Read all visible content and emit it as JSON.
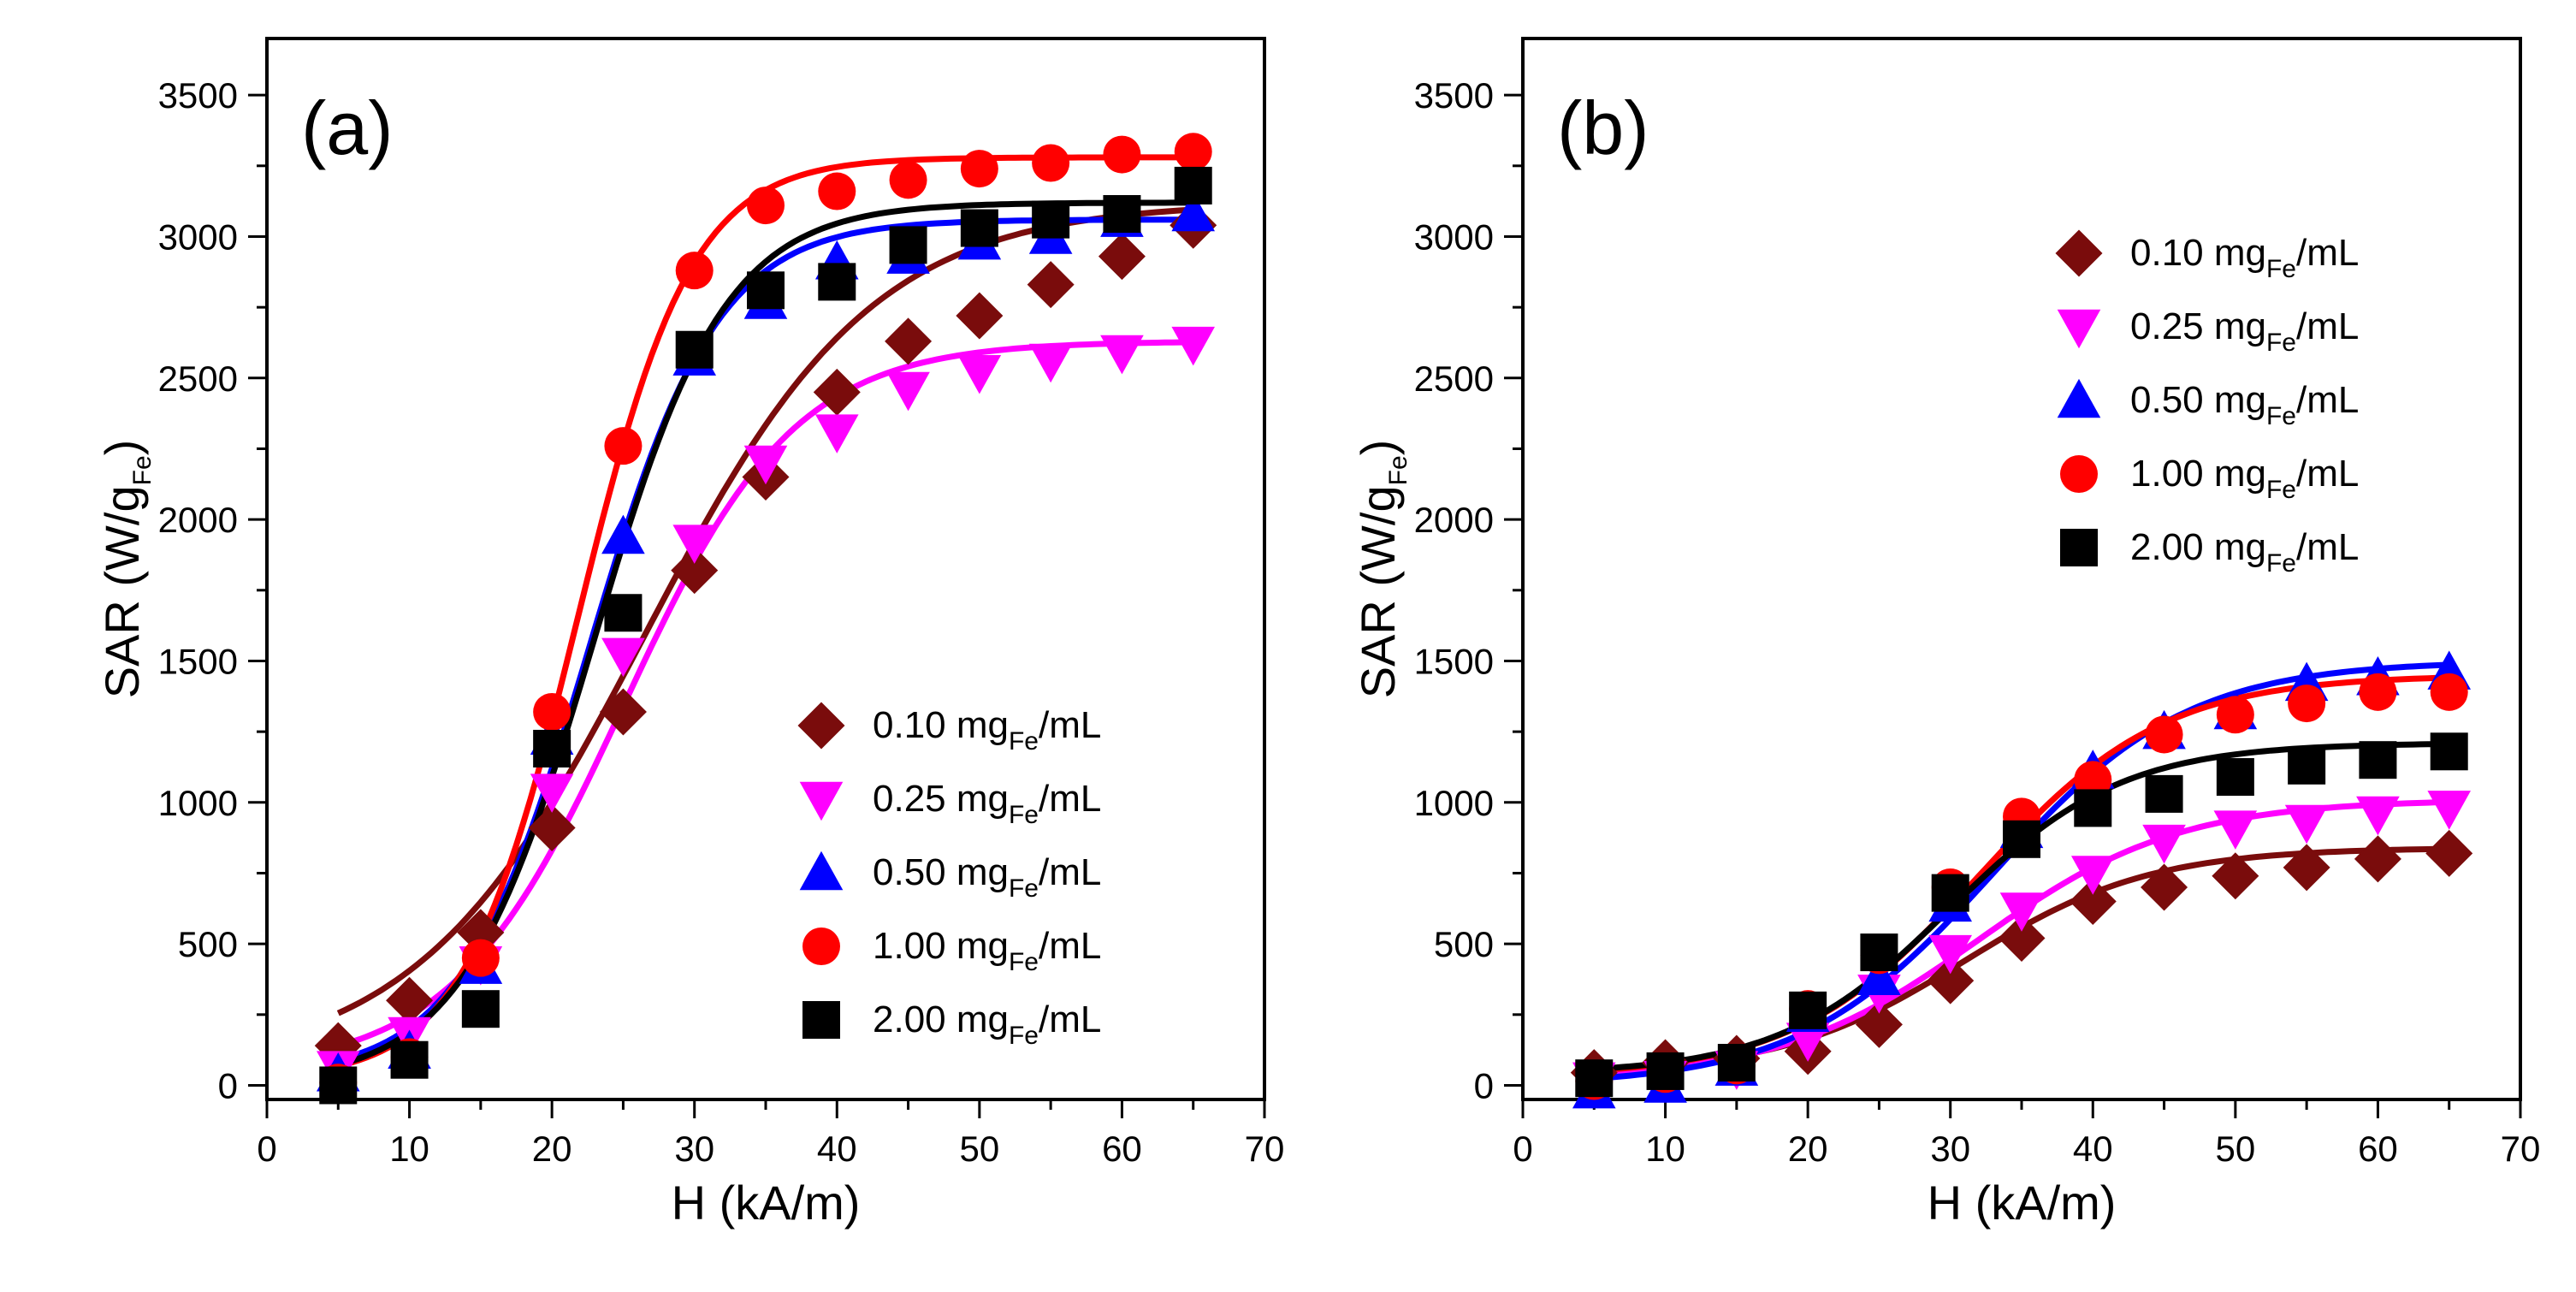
{
  "chart_data": [
    {
      "type": "scatter",
      "panel_label": "(a)",
      "xlabel": "H (kA/m)",
      "ylabel": {
        "main": "SAR (W/g",
        "sub": "Fe",
        "end": ")"
      },
      "xlim": [
        0,
        70
      ],
      "ylim": [
        -50,
        3700
      ],
      "xticks": [
        0,
        10,
        20,
        30,
        40,
        50,
        60,
        70
      ],
      "yticks": [
        0,
        500,
        1000,
        1500,
        2000,
        2500,
        3000,
        3500
      ],
      "legend_position": "bottom-right",
      "x": [
        5,
        10,
        15,
        20,
        25,
        30,
        35,
        40,
        45,
        50,
        55,
        60,
        65
      ],
      "series": [
        {
          "name": "0.10",
          "label_pre": "0.10 mg",
          "label_sub": "Fe",
          "label_post": "/mL",
          "color": "#7a0c0c",
          "marker": "diamond",
          "values": [
            140,
            300,
            540,
            910,
            1320,
            1820,
            2150,
            2450,
            2630,
            2720,
            2830,
            2930,
            3040
          ],
          "fit": {
            "base": 60,
            "amp": 3060,
            "h0": 26.5,
            "w": 8.0
          }
        },
        {
          "name": "0.25",
          "label_pre": "0.25 mg",
          "label_sub": "Fe",
          "label_post": "/mL",
          "color": "#ff00ff",
          "marker": "triangle-down",
          "values": [
            60,
            180,
            430,
            1040,
            1520,
            1920,
            2200,
            2310,
            2460,
            2520,
            2560,
            2590,
            2620
          ],
          "fit": {
            "base": 50,
            "amp": 2580,
            "h0": 25.0,
            "w": 6.0
          }
        },
        {
          "name": "0.50",
          "label_pre": "0.50 mg",
          "label_sub": "Fe",
          "label_post": "/mL",
          "color": "#0000ff",
          "marker": "triangle-up",
          "values": [
            40,
            120,
            420,
            1230,
            1940,
            2570,
            2770,
            2910,
            2930,
            2980,
            3000,
            3060,
            3080
          ],
          "fit": {
            "base": 30,
            "amp": 3030,
            "h0": 22.6,
            "w": 4.5
          }
        },
        {
          "name": "1.00",
          "label_pre": "1.00 mg",
          "label_sub": "Fe",
          "label_post": "/mL",
          "color": "#ff0000",
          "marker": "circle",
          "values": [
            10,
            100,
            450,
            1320,
            2260,
            2880,
            3110,
            3160,
            3200,
            3240,
            3260,
            3290,
            3300
          ],
          "fit": {
            "base": 20,
            "amp": 3260,
            "h0": 21.8,
            "w": 4.0
          }
        },
        {
          "name": "2.00",
          "label_pre": "2.00 mg",
          "label_sub": "Fe",
          "label_post": "/mL",
          "color": "#000000",
          "marker": "square",
          "values": [
            0,
            90,
            270,
            1190,
            1670,
            2600,
            2810,
            2840,
            2970,
            3030,
            3060,
            3080,
            3180
          ],
          "fit": {
            "base": 10,
            "amp": 3110,
            "h0": 22.9,
            "w": 4.6
          }
        }
      ]
    },
    {
      "type": "scatter",
      "panel_label": "(b)",
      "xlabel": "H (kA/m)",
      "ylabel": {
        "main": "SAR (W/g",
        "sub": "Fe",
        "end": ")"
      },
      "xlim": [
        0,
        70
      ],
      "ylim": [
        -50,
        3700
      ],
      "xticks": [
        0,
        10,
        20,
        30,
        40,
        50,
        60,
        70
      ],
      "yticks": [
        0,
        500,
        1000,
        1500,
        2000,
        2500,
        3000,
        3500
      ],
      "legend_position": "top-right",
      "x": [
        5,
        10,
        15,
        20,
        25,
        30,
        35,
        40,
        45,
        50,
        55,
        60,
        65
      ],
      "series": [
        {
          "name": "0.10",
          "label_pre": "0.10 mg",
          "label_sub": "Fe",
          "label_post": "/mL",
          "color": "#7a0c0c",
          "marker": "diamond",
          "values": [
            45,
            80,
            95,
            120,
            215,
            370,
            520,
            650,
            700,
            740,
            770,
            800,
            820
          ],
          "fit": {
            "base": 40,
            "amp": 800,
            "h0": 31.0,
            "w": 6.5
          }
        },
        {
          "name": "0.25",
          "label_pre": "0.25 mg",
          "label_sub": "Fe",
          "label_post": "/mL",
          "color": "#ff00ff",
          "marker": "triangle-down",
          "values": [
            20,
            25,
            60,
            160,
            330,
            470,
            620,
            750,
            860,
            910,
            930,
            960,
            980
          ],
          "fit": {
            "base": 20,
            "amp": 990,
            "h0": 32.0,
            "w": 7.0
          }
        },
        {
          "name": "0.50",
          "label_pre": "0.50 mg",
          "label_sub": "Fe",
          "label_post": "/mL",
          "color": "#0000ff",
          "marker": "triangle-up",
          "values": [
            -20,
            0,
            60,
            250,
            380,
            640,
            900,
            1110,
            1250,
            1320,
            1420,
            1440,
            1460
          ],
          "fit": {
            "base": 0,
            "amp": 1500,
            "h0": 33.0,
            "w": 6.8
          }
        },
        {
          "name": "1.00",
          "label_pre": "1.00 mg",
          "label_sub": "Fe",
          "label_post": "/mL",
          "color": "#ff0000",
          "marker": "circle",
          "values": [
            15,
            40,
            70,
            270,
            460,
            700,
            950,
            1080,
            1240,
            1310,
            1350,
            1390,
            1390
          ],
          "fit": {
            "base": 30,
            "amp": 1420,
            "h0": 32.0,
            "w": 6.5
          }
        },
        {
          "name": "2.00",
          "label_pre": "2.00 mg",
          "label_sub": "Fe",
          "label_post": "/mL",
          "color": "#000000",
          "marker": "square",
          "values": [
            25,
            50,
            80,
            265,
            470,
            680,
            870,
            980,
            1030,
            1090,
            1130,
            1150,
            1180
          ],
          "fit": {
            "base": 40,
            "amp": 1170,
            "h0": 30.0,
            "w": 6.0
          }
        }
      ]
    }
  ]
}
